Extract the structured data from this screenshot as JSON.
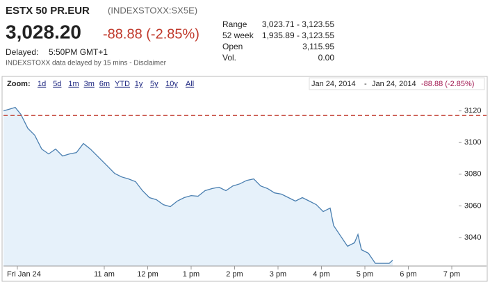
{
  "header": {
    "symbol": "ESTX 50 PR.EUR",
    "exchange": "(INDEXSTOXX:SX5E)",
    "price": "3,028.20",
    "change": "-88.88 (-2.85%)",
    "delayed_label": "Delayed:",
    "delayed_time": "5:50PM GMT+1",
    "disclaimer": "INDEXSTOXX data delayed by 15 mins - Disclaimer"
  },
  "stats": [
    {
      "label": "Range",
      "value": "3,023.71 - 3,123.55"
    },
    {
      "label": "52 week",
      "value": "1,935.89 - 3,123.55"
    },
    {
      "label": "Open",
      "value": "3,115.95"
    },
    {
      "label": "Vol.",
      "value": "0.00"
    }
  ],
  "toolbar": {
    "zoom_label": "Zoom:",
    "zoom_options": [
      "1d",
      "5d",
      "1m",
      "3m",
      "6m",
      "YTD",
      "1y",
      "5y",
      "10y",
      "All"
    ],
    "range_start": "Jan 24, 2014",
    "range_separator": "-",
    "range_end": "Jan 24, 2014",
    "range_change": "-88.88 (-2.85%)"
  },
  "chart_data": {
    "type": "line",
    "x": [
      8.68,
      8.84,
      8.95,
      9.08,
      9.24,
      9.4,
      9.56,
      9.72,
      9.88,
      10.04,
      10.2,
      10.36,
      10.52,
      10.68,
      10.84,
      11.08,
      11.24,
      11.4,
      11.56,
      11.72,
      11.88,
      12.04,
      12.2,
      12.36,
      12.52,
      12.68,
      12.84,
      13.0,
      13.16,
      13.32,
      13.48,
      13.64,
      13.8,
      13.96,
      14.12,
      14.28,
      14.44,
      14.6,
      14.76,
      14.92,
      15.08,
      15.24,
      15.4,
      15.56,
      15.72,
      15.88,
      16.04,
      16.2,
      16.28,
      16.44,
      16.6,
      16.76,
      16.84,
      16.92,
      17.08,
      17.24,
      17.56,
      17.64
    ],
    "series": [
      {
        "color": "#4a7fb0",
        "values": [
          3120,
          3121.3,
          3122.2,
          3117.8,
          3109,
          3104.6,
          3095.9,
          3092.8,
          3095.9,
          3091.5,
          3092.8,
          3093.7,
          3099.4,
          3095.9,
          3091.5,
          3084.9,
          3080.5,
          3078.3,
          3077,
          3075.3,
          3069.6,
          3065.2,
          3063.9,
          3060.8,
          3059.5,
          3063,
          3065.2,
          3066.5,
          3066.1,
          3069.6,
          3070.9,
          3071.8,
          3069.6,
          3072.6,
          3073.9,
          3076.1,
          3077,
          3072.6,
          3070.9,
          3068.2,
          3067.4,
          3065.2,
          3063,
          3065.2,
          3063,
          3060.8,
          3056.4,
          3058.6,
          3047.6,
          3041,
          3034.5,
          3036.7,
          3041.9,
          3032.3,
          3030.1,
          3023.71,
          3023.71,
          3025.7
        ]
      }
    ],
    "xlim": [
      8.68,
      19.8
    ],
    "ylim": [
      3022,
      3133
    ],
    "xticks": [
      {
        "value": 9,
        "label": "Fri Jan 24"
      },
      {
        "value": 11,
        "label": "11 am"
      },
      {
        "value": 12,
        "label": "12 pm"
      },
      {
        "value": 13,
        "label": "1 pm"
      },
      {
        "value": 14,
        "label": "2 pm"
      },
      {
        "value": 15,
        "label": "3 pm"
      },
      {
        "value": 16,
        "label": "4 pm"
      },
      {
        "value": 17,
        "label": "5 pm"
      },
      {
        "value": 18,
        "label": "6 pm"
      },
      {
        "value": 19,
        "label": "7 pm"
      }
    ],
    "yticks": [
      3040,
      3060,
      3080,
      3100,
      3120
    ],
    "reference_line": {
      "value": 3117.08,
      "color": "#c0392b"
    },
    "fill_color": "#e6f1fa"
  }
}
